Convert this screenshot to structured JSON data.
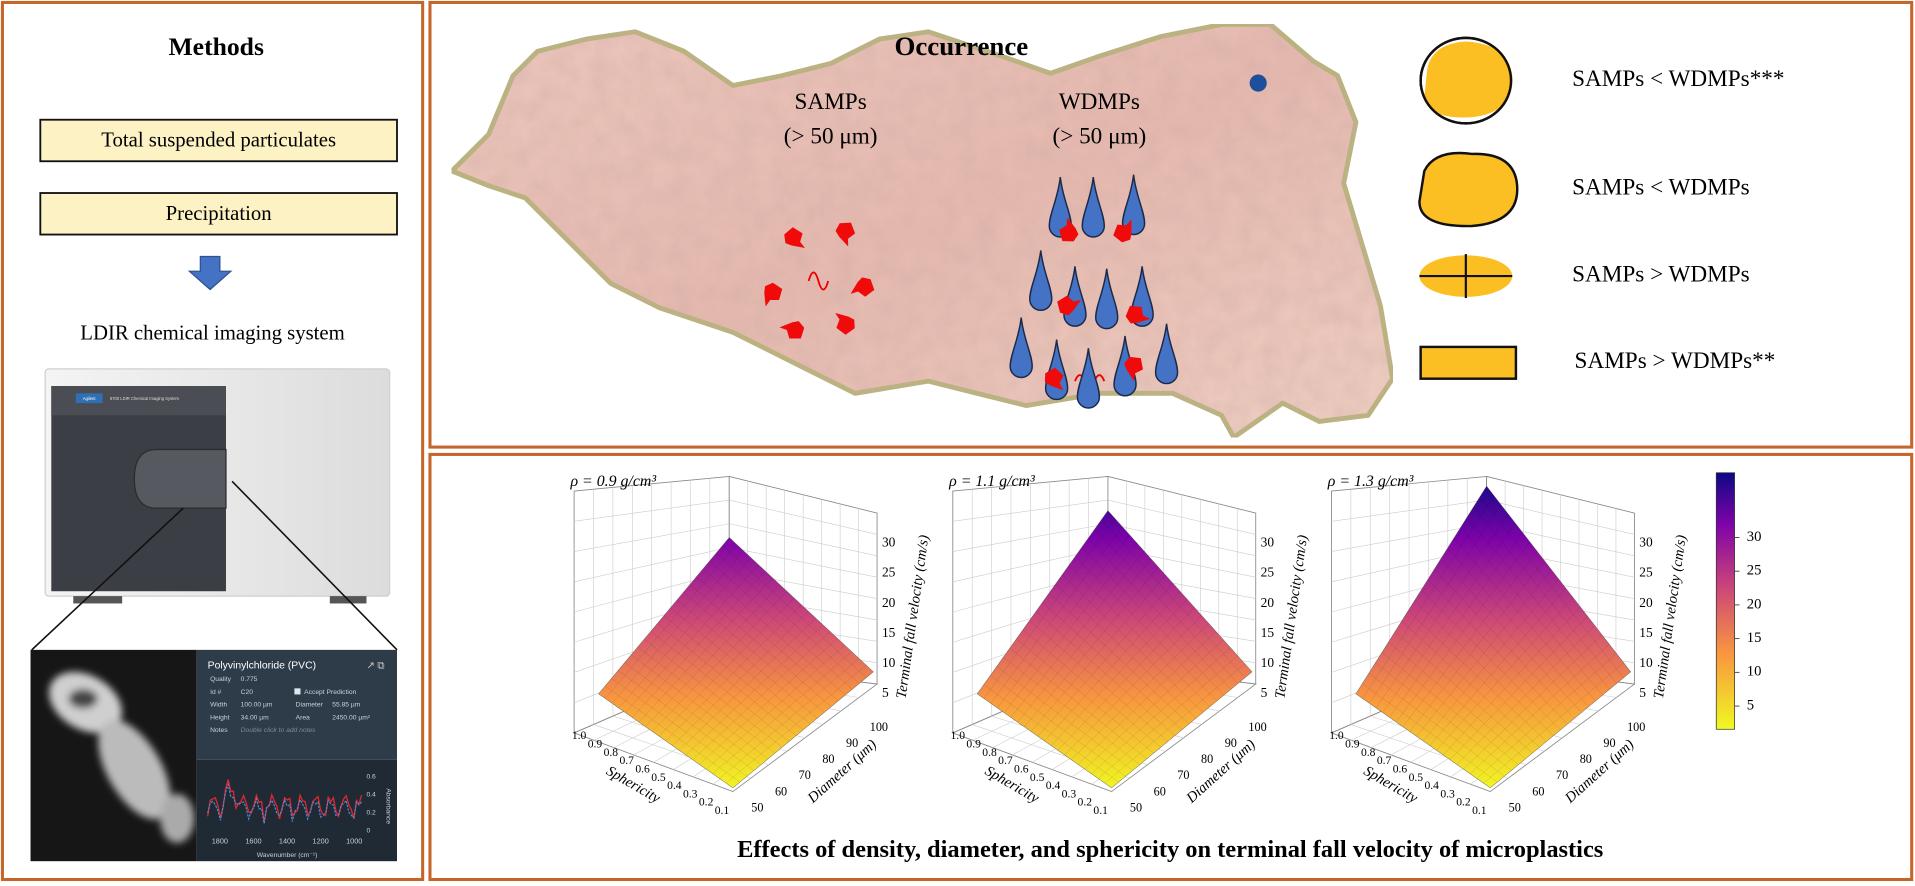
{
  "methods": {
    "title": "Methods",
    "steps": [
      "Total suspended particulates",
      "Precipitation"
    ],
    "system_label": "LDIR chemical imaging system",
    "instrument": {
      "brand": "Agilent",
      "model": "8700 LDIR Chemical Imaging System"
    },
    "result": {
      "compound": "Polyvinylchloride (PVC)",
      "left_fields": [
        [
          "Quality",
          "0.775"
        ],
        [
          "Id #",
          "C20"
        ],
        [
          "Width",
          "100.00 µm"
        ],
        [
          "Height",
          "34.00 µm"
        ]
      ],
      "accept": "Accept Prediction",
      "right_fields": [
        [
          "Diameter",
          "55.85 µm"
        ],
        [
          "Area",
          "2450.00 µm²"
        ]
      ],
      "notes_label": "Notes",
      "notes_hint": "Double click to add notes",
      "spectrum": {
        "xticks": [
          1800,
          1600,
          1400,
          1200,
          1000
        ],
        "yticks": [
          0.6,
          0.4,
          0.2,
          0
        ],
        "xlabel": "Wavenumber (cm⁻¹)",
        "ylabel": "Absorbance"
      }
    }
  },
  "occurrence": {
    "title": "Occurrence",
    "groups": [
      {
        "name": "SAMPs",
        "size": "(> 50 μm)"
      },
      {
        "name": "WDMPs",
        "size": "(> 50 μm)"
      }
    ],
    "legend": [
      "SAMPs < WDMPs***",
      "SAMPs < WDMPs",
      "SAMPs > WDMPs",
      "SAMPs > WDMPs**"
    ]
  },
  "effects": {
    "plots": [
      {
        "density": "ρ = 0.9 g/cm³"
      },
      {
        "density": "ρ = 1.1 g/cm³"
      },
      {
        "density": "ρ = 1.3 g/cm³"
      }
    ],
    "zlabel": "Terminal fall velocity (cm/s)",
    "zticks": [
      5,
      10,
      15,
      20,
      25,
      30
    ],
    "sphericity_label": "Sphericity",
    "sphericity_ticks": [
      "1.0",
      "0.9",
      "0.8",
      "0.7",
      "0.6",
      "0.5",
      "0.4",
      "0.3",
      "0.2",
      "0.1"
    ],
    "diameter_label": "Diameter (μm)",
    "diameter_ticks": [
      50,
      60,
      70,
      80,
      90,
      100
    ],
    "colorbar_ticks": [
      5,
      10,
      15,
      20,
      25,
      30
    ],
    "caption": "Effects of density, diameter, and sphericity on terminal fall velocity of microplastics"
  }
}
